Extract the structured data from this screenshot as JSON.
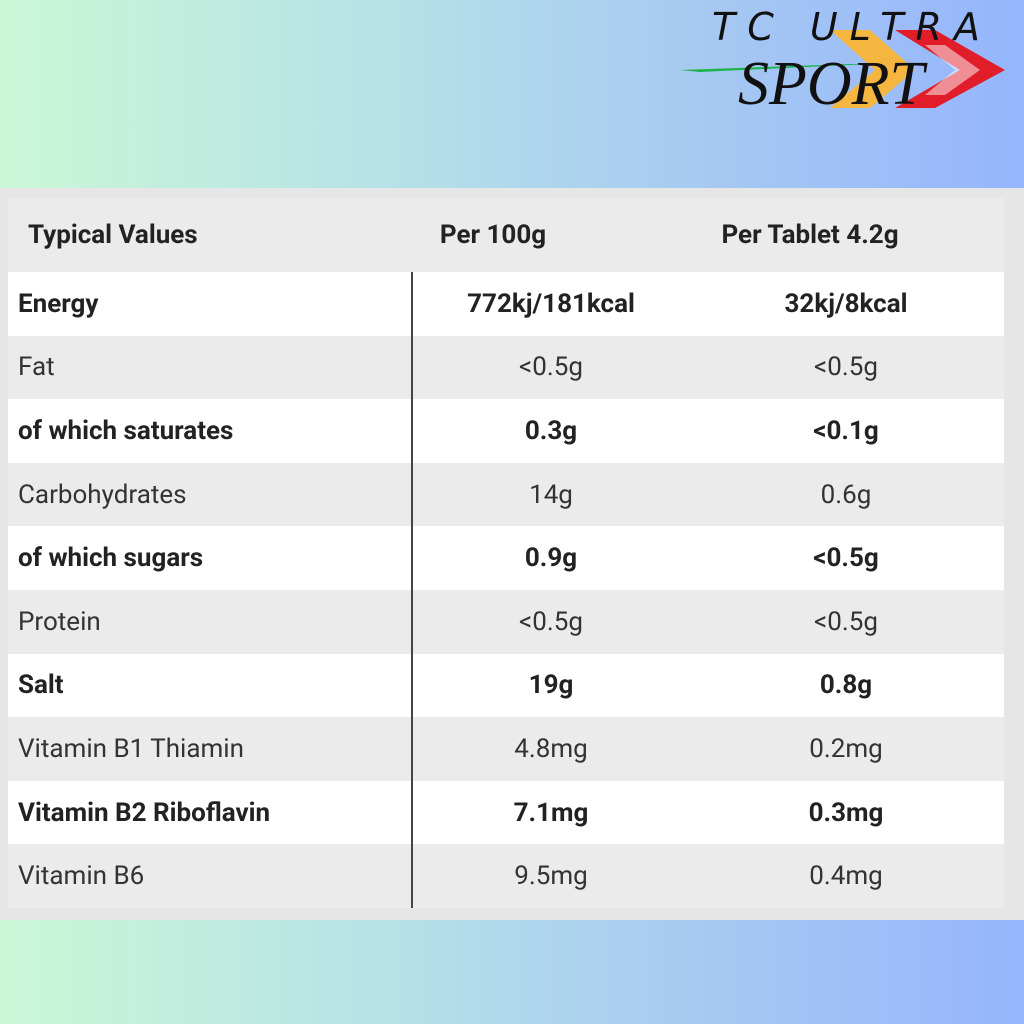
{
  "logo": {
    "line1": "TC ULTRA",
    "line2": "SPORT"
  },
  "table": {
    "header": [
      "Typical Values",
      "Per 100g",
      "Per Tablet 4.2g"
    ],
    "rows": [
      {
        "cells": [
          "Energy",
          "772kj/181kcal",
          "32kj/8kcal"
        ],
        "bold": true
      },
      {
        "cells": [
          "Fat",
          "<0.5g",
          "<0.5g"
        ],
        "bold": false
      },
      {
        "cells": [
          "of which saturates",
          "0.3g",
          "<0.1g"
        ],
        "bold": true
      },
      {
        "cells": [
          "Carbohydrates",
          "14g",
          "0.6g"
        ],
        "bold": false
      },
      {
        "cells": [
          "of which sugars",
          "0.9g",
          "<0.5g"
        ],
        "bold": true
      },
      {
        "cells": [
          "Protein",
          "<0.5g",
          "<0.5g"
        ],
        "bold": false
      },
      {
        "cells": [
          "Salt",
          "19g",
          "0.8g"
        ],
        "bold": true
      },
      {
        "cells": [
          "Vitamin B1 Thiamin",
          "4.8mg",
          "0.2mg"
        ],
        "bold": false
      },
      {
        "cells": [
          "Vitamin B2 Riboflavin",
          "7.1mg",
          "0.3mg"
        ],
        "bold": true
      },
      {
        "cells": [
          "Vitamin B6",
          "9.5mg",
          "0.4mg"
        ],
        "bold": false
      }
    ]
  }
}
